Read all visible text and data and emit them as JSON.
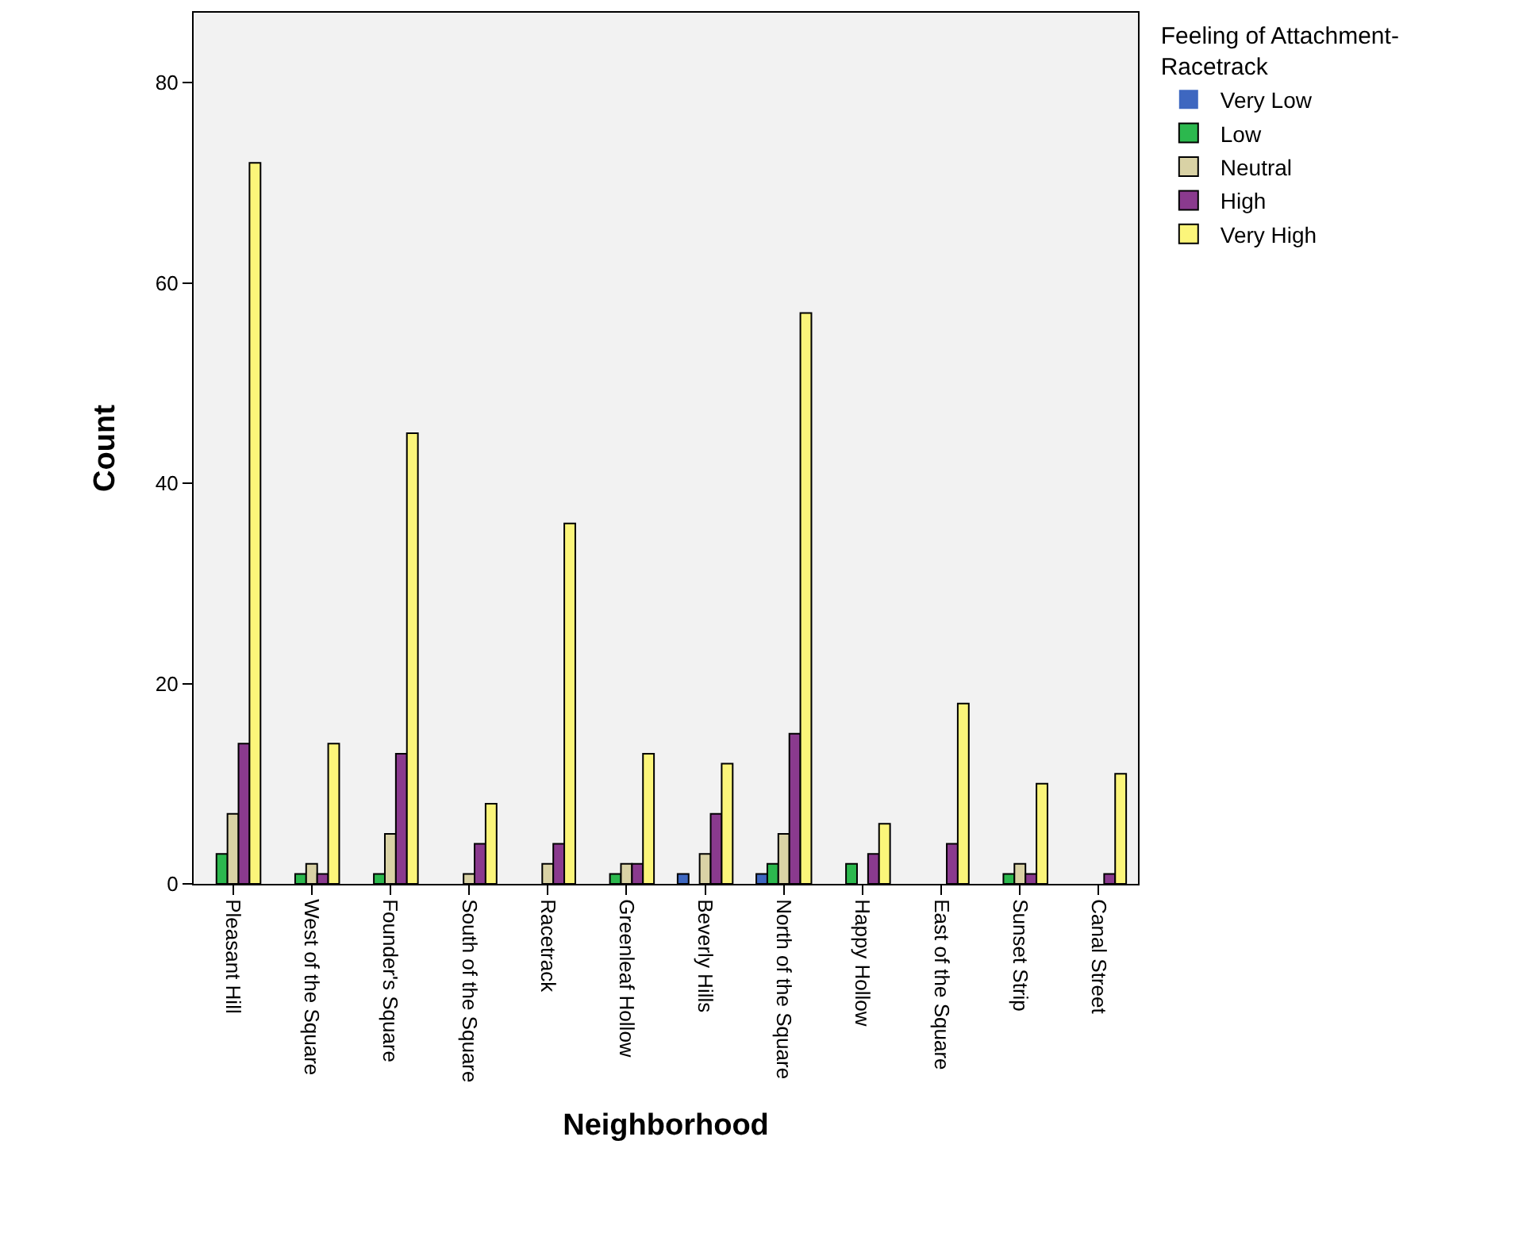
{
  "chart_data": {
    "type": "bar",
    "xlabel": "Neighborhood",
    "ylabel": "Count",
    "legend_title": "Feeling of Attachment-Racetrack",
    "legend": "top right",
    "grid": false,
    "ylim": [
      0,
      87
    ],
    "yticks": [
      0,
      20,
      40,
      60,
      80
    ],
    "categories": [
      "Pleasant Hill",
      "West of the Square",
      "Founder's Square",
      "South of the Square",
      "Racetrack",
      "Greenleaf Hollow",
      "Beverly Hills",
      "North of the Square",
      "Happy Hollow",
      "East of the Square",
      "Sunset Strip",
      "Canal Street"
    ],
    "series": [
      {
        "name": "Very Low",
        "color": "#3e67c0",
        "values": [
          0,
          0,
          0,
          0,
          0,
          0,
          1,
          1,
          0,
          0,
          0,
          0
        ]
      },
      {
        "name": "Low",
        "color": "#2cb84e",
        "values": [
          3,
          1,
          1,
          0,
          0,
          1,
          0,
          2,
          2,
          0,
          1,
          0
        ]
      },
      {
        "name": "Neutral",
        "color": "#d9d2a5",
        "values": [
          7,
          2,
          5,
          1,
          2,
          2,
          3,
          5,
          0,
          0,
          2,
          0
        ]
      },
      {
        "name": "High",
        "color": "#8a3a8e",
        "values": [
          14,
          1,
          13,
          4,
          4,
          2,
          7,
          15,
          3,
          4,
          1,
          1
        ]
      },
      {
        "name": "Very High",
        "color": "#fbf57a",
        "values": [
          72,
          14,
          45,
          8,
          36,
          13,
          12,
          57,
          6,
          18,
          10,
          11
        ]
      }
    ]
  }
}
